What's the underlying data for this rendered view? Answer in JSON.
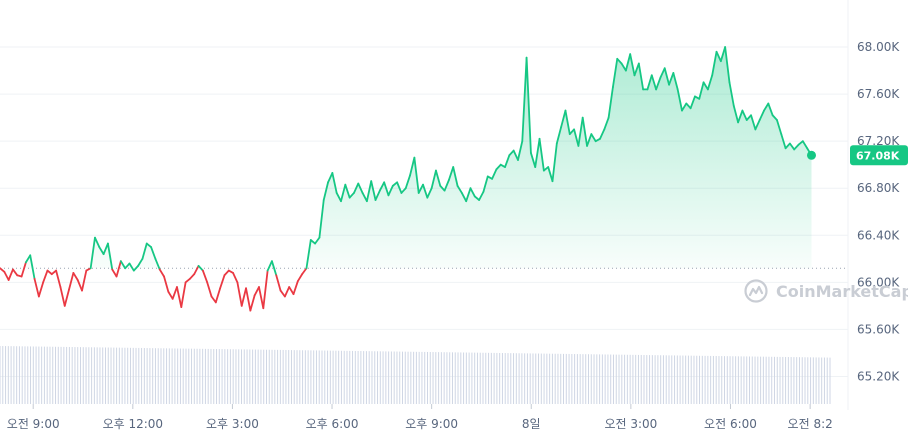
{
  "brand": {
    "watermark": "CoinMarketCap",
    "logo_icon": "coinmarketcap-logo-icon"
  },
  "colors": {
    "up": "#16c784",
    "down": "#ea3943",
    "grid": "#eff2f5",
    "axis_text": "#58667e",
    "volume": "#cfd6e4",
    "fill_top": "#16c784"
  },
  "current_price": {
    "label": "67.08K",
    "value": 67080
  },
  "chart_data": {
    "type": "area",
    "title": "",
    "xlabel": "",
    "ylabel": "",
    "ylim": [
      65000,
      68400
    ],
    "grid": true,
    "baseline": 66120,
    "y_ticks": [
      {
        "value": 68000,
        "label": "68.00K"
      },
      {
        "value": 67600,
        "label": "67.60K"
      },
      {
        "value": 67200,
        "label": "67.20K"
      },
      {
        "value": 66800,
        "label": "66.80K"
      },
      {
        "value": 66400,
        "label": "66.40K"
      },
      {
        "value": 66000,
        "label": "66.00K"
      },
      {
        "value": 65600,
        "label": "65.60K"
      },
      {
        "value": 65200,
        "label": "65.20K"
      }
    ],
    "x_ticks": [
      {
        "t": 9.0,
        "label": "오전 9:00"
      },
      {
        "t": 12.0,
        "label": "오후 12:00"
      },
      {
        "t": 15.0,
        "label": "오후 3:00"
      },
      {
        "t": 18.0,
        "label": "오후 6:00"
      },
      {
        "t": 21.0,
        "label": "오후 9:00"
      },
      {
        "t": 24.0,
        "label": "8일"
      },
      {
        "t": 27.0,
        "label": "오전 3:00"
      },
      {
        "t": 30.0,
        "label": "오전 6:00"
      },
      {
        "t": 32.4,
        "label": "오전 8:2"
      }
    ],
    "x_range": [
      8.0,
      33.6
    ],
    "series": [
      {
        "points": [
          [
            8.0,
            66120
          ],
          [
            8.13,
            66090
          ],
          [
            8.26,
            66020
          ],
          [
            8.39,
            66110
          ],
          [
            8.52,
            66060
          ],
          [
            8.65,
            66050
          ],
          [
            8.78,
            66170
          ],
          [
            8.91,
            66230
          ],
          [
            9.04,
            66030
          ],
          [
            9.17,
            65880
          ],
          [
            9.3,
            66000
          ],
          [
            9.43,
            66100
          ],
          [
            9.56,
            66070
          ],
          [
            9.69,
            66100
          ],
          [
            9.82,
            65960
          ],
          [
            9.95,
            65800
          ],
          [
            10.08,
            65940
          ],
          [
            10.21,
            66080
          ],
          [
            10.34,
            66020
          ],
          [
            10.47,
            65930
          ],
          [
            10.6,
            66100
          ],
          [
            10.73,
            66120
          ],
          [
            10.86,
            66380
          ],
          [
            10.99,
            66300
          ],
          [
            11.12,
            66240
          ],
          [
            11.25,
            66330
          ],
          [
            11.38,
            66110
          ],
          [
            11.51,
            66050
          ],
          [
            11.64,
            66180
          ],
          [
            11.77,
            66120
          ],
          [
            11.9,
            66160
          ],
          [
            12.03,
            66100
          ],
          [
            12.16,
            66140
          ],
          [
            12.29,
            66200
          ],
          [
            12.42,
            66330
          ],
          [
            12.55,
            66300
          ],
          [
            12.68,
            66200
          ],
          [
            12.81,
            66110
          ],
          [
            12.94,
            66050
          ],
          [
            13.07,
            65920
          ],
          [
            13.2,
            65860
          ],
          [
            13.33,
            65960
          ],
          [
            13.46,
            65790
          ],
          [
            13.59,
            66000
          ],
          [
            13.72,
            66030
          ],
          [
            13.85,
            66070
          ],
          [
            13.98,
            66140
          ],
          [
            14.11,
            66100
          ],
          [
            14.24,
            66000
          ],
          [
            14.37,
            65880
          ],
          [
            14.5,
            65830
          ],
          [
            14.63,
            65950
          ],
          [
            14.76,
            66060
          ],
          [
            14.89,
            66100
          ],
          [
            15.02,
            66080
          ],
          [
            15.15,
            66000
          ],
          [
            15.28,
            65800
          ],
          [
            15.41,
            65950
          ],
          [
            15.54,
            65760
          ],
          [
            15.67,
            65890
          ],
          [
            15.8,
            65960
          ],
          [
            15.93,
            65780
          ],
          [
            16.06,
            66100
          ],
          [
            16.19,
            66180
          ],
          [
            16.32,
            66060
          ],
          [
            16.45,
            65930
          ],
          [
            16.58,
            65880
          ],
          [
            16.71,
            65960
          ],
          [
            16.84,
            65900
          ],
          [
            16.97,
            66010
          ],
          [
            17.1,
            66070
          ],
          [
            17.23,
            66120
          ],
          [
            17.36,
            66360
          ],
          [
            17.49,
            66330
          ],
          [
            17.62,
            66380
          ],
          [
            17.75,
            66700
          ],
          [
            17.88,
            66850
          ],
          [
            18.01,
            66930
          ],
          [
            18.14,
            66760
          ],
          [
            18.27,
            66690
          ],
          [
            18.4,
            66830
          ],
          [
            18.53,
            66720
          ],
          [
            18.66,
            66760
          ],
          [
            18.79,
            66840
          ],
          [
            18.92,
            66760
          ],
          [
            19.05,
            66690
          ],
          [
            19.18,
            66860
          ],
          [
            19.31,
            66700
          ],
          [
            19.44,
            66780
          ],
          [
            19.57,
            66850
          ],
          [
            19.7,
            66740
          ],
          [
            19.83,
            66820
          ],
          [
            19.96,
            66850
          ],
          [
            20.09,
            66760
          ],
          [
            20.22,
            66800
          ],
          [
            20.35,
            66910
          ],
          [
            20.48,
            67060
          ],
          [
            20.61,
            66760
          ],
          [
            20.74,
            66830
          ],
          [
            20.87,
            66720
          ],
          [
            21.0,
            66800
          ],
          [
            21.13,
            66950
          ],
          [
            21.26,
            66820
          ],
          [
            21.39,
            66780
          ],
          [
            21.52,
            66870
          ],
          [
            21.65,
            66980
          ],
          [
            21.78,
            66820
          ],
          [
            21.91,
            66760
          ],
          [
            22.04,
            66690
          ],
          [
            22.17,
            66800
          ],
          [
            22.3,
            66730
          ],
          [
            22.43,
            66700
          ],
          [
            22.56,
            66770
          ],
          [
            22.69,
            66900
          ],
          [
            22.82,
            66880
          ],
          [
            22.95,
            66960
          ],
          [
            23.08,
            67000
          ],
          [
            23.21,
            66980
          ],
          [
            23.34,
            67080
          ],
          [
            23.47,
            67120
          ],
          [
            23.6,
            67040
          ],
          [
            23.73,
            67200
          ],
          [
            23.86,
            67910
          ],
          [
            23.99,
            67100
          ],
          [
            24.12,
            66980
          ],
          [
            24.25,
            67220
          ],
          [
            24.38,
            66950
          ],
          [
            24.51,
            66980
          ],
          [
            24.64,
            66860
          ],
          [
            24.77,
            67180
          ],
          [
            24.9,
            67320
          ],
          [
            25.03,
            67460
          ],
          [
            25.16,
            67260
          ],
          [
            25.29,
            67300
          ],
          [
            25.42,
            67160
          ],
          [
            25.55,
            67400
          ],
          [
            25.68,
            67160
          ],
          [
            25.81,
            67260
          ],
          [
            25.94,
            67200
          ],
          [
            26.07,
            67220
          ],
          [
            26.2,
            67300
          ],
          [
            26.33,
            67400
          ],
          [
            26.46,
            67660
          ],
          [
            26.59,
            67900
          ],
          [
            26.72,
            67860
          ],
          [
            26.85,
            67800
          ],
          [
            26.98,
            67940
          ],
          [
            27.11,
            67760
          ],
          [
            27.24,
            67860
          ],
          [
            27.37,
            67640
          ],
          [
            27.5,
            67640
          ],
          [
            27.63,
            67760
          ],
          [
            27.76,
            67640
          ],
          [
            27.89,
            67740
          ],
          [
            28.02,
            67820
          ],
          [
            28.15,
            67680
          ],
          [
            28.28,
            67780
          ],
          [
            28.41,
            67640
          ],
          [
            28.54,
            67460
          ],
          [
            28.67,
            67520
          ],
          [
            28.8,
            67480
          ],
          [
            28.93,
            67580
          ],
          [
            29.06,
            67560
          ],
          [
            29.19,
            67700
          ],
          [
            29.32,
            67640
          ],
          [
            29.45,
            67760
          ],
          [
            29.58,
            67960
          ],
          [
            29.71,
            67880
          ],
          [
            29.84,
            68000
          ],
          [
            29.97,
            67700
          ],
          [
            30.1,
            67500
          ],
          [
            30.23,
            67360
          ],
          [
            30.36,
            67460
          ],
          [
            30.49,
            67380
          ],
          [
            30.62,
            67420
          ],
          [
            30.75,
            67300
          ],
          [
            30.88,
            67380
          ],
          [
            31.01,
            67460
          ],
          [
            31.14,
            67520
          ],
          [
            31.27,
            67420
          ],
          [
            31.4,
            67380
          ],
          [
            31.53,
            67260
          ],
          [
            31.66,
            67140
          ],
          [
            31.79,
            67180
          ],
          [
            31.92,
            67130
          ],
          [
            32.05,
            67170
          ],
          [
            32.18,
            67200
          ],
          [
            32.31,
            67140
          ],
          [
            32.44,
            67080
          ]
        ]
      }
    ],
    "volume": {
      "ylim": [
        0,
        1
      ],
      "levels_start": 0.9,
      "levels_end": 0.72
    }
  }
}
